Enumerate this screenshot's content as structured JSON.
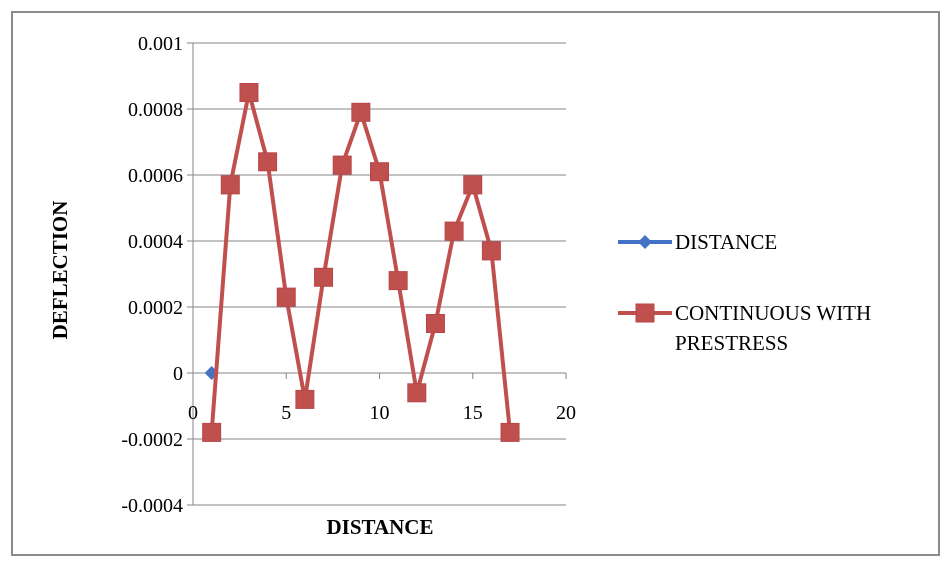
{
  "chart_data": {
    "type": "scatter",
    "xlabel": "DISTANCE",
    "ylabel": "DEFLECTION",
    "xlim": [
      0,
      20
    ],
    "ylim": [
      -0.0004,
      0.001
    ],
    "x_ticks": [
      "0",
      "5",
      "10",
      "15",
      "20"
    ],
    "y_ticks": [
      "0.001",
      "0.0008",
      "0.0006",
      "0.0004",
      "0.0002",
      "0",
      "-0.0002",
      "-0.0004"
    ],
    "grid": true,
    "legend_position": "right",
    "series": [
      {
        "name": "DISTANCE",
        "color": "#4472c4",
        "marker": "diamond",
        "points": [
          [
            1,
            0
          ]
        ]
      },
      {
        "name": "CONTINUOUS WITH PRESTRESS",
        "color": "#c0504d",
        "marker": "square",
        "points": [
          [
            1,
            -0.00018
          ],
          [
            2,
            0.00057
          ],
          [
            3,
            0.00085
          ],
          [
            4,
            0.00064
          ],
          [
            5,
            0.00023
          ],
          [
            6,
            -8e-05
          ],
          [
            7,
            0.00029
          ],
          [
            8,
            0.00063
          ],
          [
            9,
            0.00079
          ],
          [
            10,
            0.00061
          ],
          [
            11,
            0.00028
          ],
          [
            12,
            -6e-05
          ],
          [
            13,
            0.00015
          ],
          [
            14,
            0.00043
          ],
          [
            15,
            0.00057
          ],
          [
            16,
            0.00037
          ],
          [
            17,
            -0.00018
          ]
        ]
      }
    ]
  }
}
